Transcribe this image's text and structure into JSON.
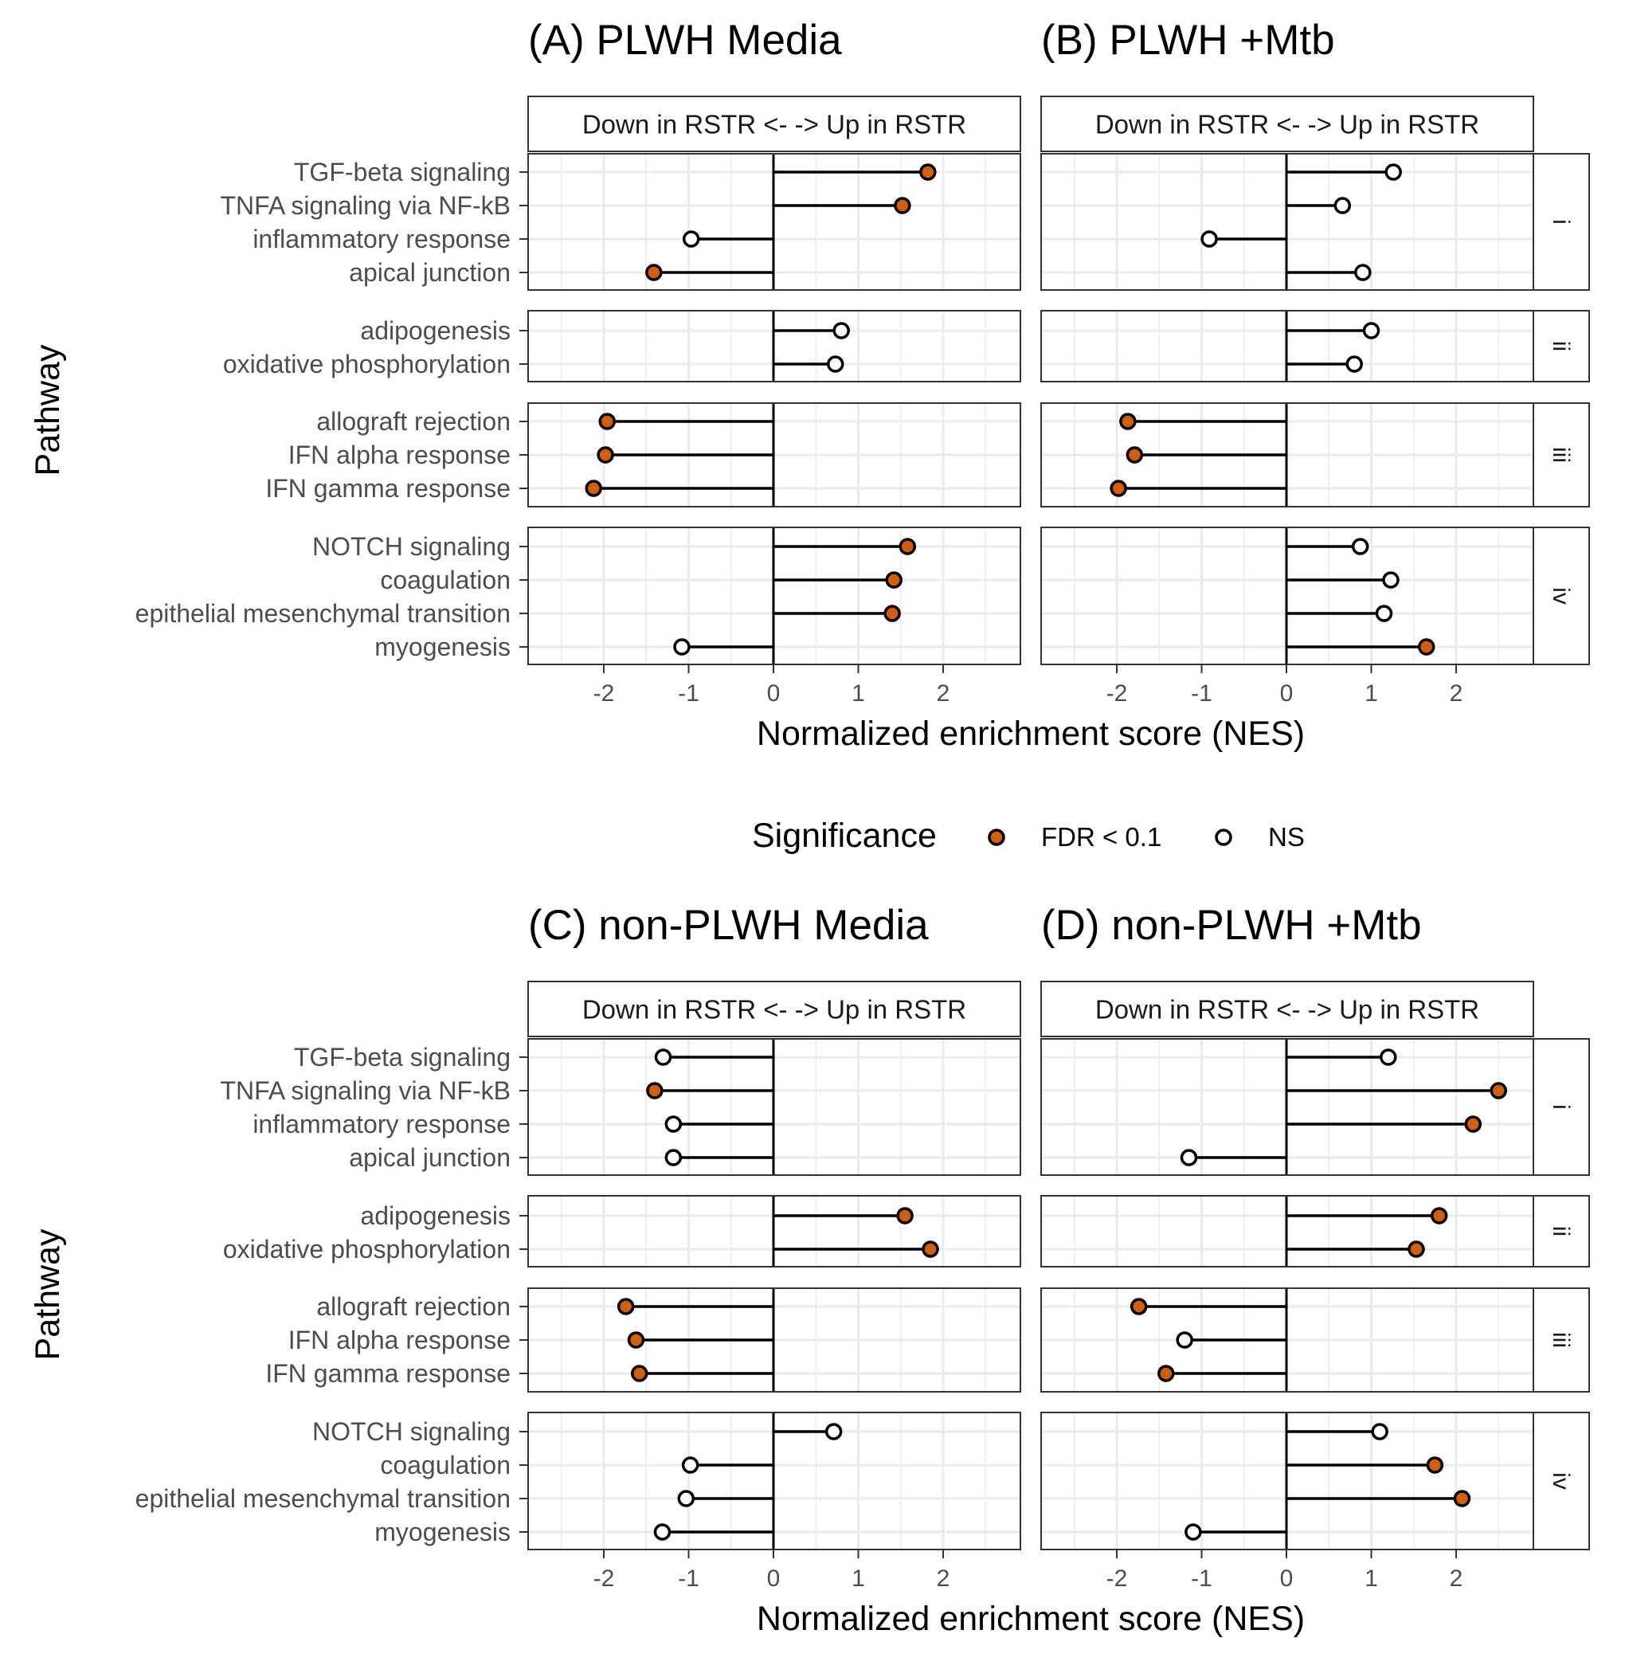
{
  "figure": {
    "y_axis_title": "Pathway",
    "x_axis_title": "Normalized enrichment score (NES)",
    "strip_label": "Down in RSTR <-  -> Up in RSTR",
    "legend": {
      "title": "Significance",
      "items": [
        {
          "label": "FDR < 0.1",
          "color": "#D55E00"
        },
        {
          "label": "NS",
          "color": "#FFFFFF"
        }
      ]
    }
  },
  "chart_data": [
    {
      "type": "lollipop",
      "title": "(A) PLWH Media",
      "xlabel": "Normalized enrichment score (NES)",
      "ylabel": "Pathway",
      "xlim": [
        -2.9,
        2.9
      ],
      "x_ticks": [
        "-2",
        "-1",
        "0",
        "1",
        "2"
      ],
      "groups": [
        {
          "label": "i",
          "rows": [
            {
              "pathway": "TGF-beta signaling",
              "nes": 1.82,
              "significant": true
            },
            {
              "pathway": "TNFA signaling via NF-kB",
              "nes": 1.52,
              "significant": true
            },
            {
              "pathway": "inflammatory response",
              "nes": -0.97,
              "significant": false
            },
            {
              "pathway": "apical junction",
              "nes": -1.41,
              "significant": true
            }
          ]
        },
        {
          "label": "ii",
          "rows": [
            {
              "pathway": "adipogenesis",
              "nes": 0.8,
              "significant": false
            },
            {
              "pathway": "oxidative phosphorylation",
              "nes": 0.73,
              "significant": false
            }
          ]
        },
        {
          "label": "iii",
          "rows": [
            {
              "pathway": "allograft rejection",
              "nes": -1.96,
              "significant": true
            },
            {
              "pathway": "IFN alpha response",
              "nes": -1.98,
              "significant": true
            },
            {
              "pathway": "IFN gamma response",
              "nes": -2.12,
              "significant": true
            }
          ]
        },
        {
          "label": "iv",
          "rows": [
            {
              "pathway": "NOTCH signaling",
              "nes": 1.58,
              "significant": true
            },
            {
              "pathway": "coagulation",
              "nes": 1.42,
              "significant": true
            },
            {
              "pathway": "epithelial mesenchymal transition",
              "nes": 1.4,
              "significant": true
            },
            {
              "pathway": "myogenesis",
              "nes": -1.08,
              "significant": false
            }
          ]
        }
      ]
    },
    {
      "type": "lollipop",
      "title": "(B) PLWH +Mtb",
      "xlabel": "Normalized enrichment score (NES)",
      "xlim": [
        -2.9,
        2.9
      ],
      "x_ticks": [
        "-2",
        "-1",
        "0",
        "1",
        "2"
      ],
      "groups": [
        {
          "label": "i",
          "rows": [
            {
              "pathway": "TGF-beta signaling",
              "nes": 1.26,
              "significant": false
            },
            {
              "pathway": "TNFA signaling via NF-kB",
              "nes": 0.66,
              "significant": false
            },
            {
              "pathway": "inflammatory response",
              "nes": -0.91,
              "significant": false
            },
            {
              "pathway": "apical junction",
              "nes": 0.9,
              "significant": false
            }
          ]
        },
        {
          "label": "ii",
          "rows": [
            {
              "pathway": "adipogenesis",
              "nes": 1.0,
              "significant": false
            },
            {
              "pathway": "oxidative phosphorylation",
              "nes": 0.8,
              "significant": false
            }
          ]
        },
        {
          "label": "iii",
          "rows": [
            {
              "pathway": "allograft rejection",
              "nes": -1.87,
              "significant": true
            },
            {
              "pathway": "IFN alpha response",
              "nes": -1.79,
              "significant": true
            },
            {
              "pathway": "IFN gamma response",
              "nes": -1.98,
              "significant": true
            }
          ]
        },
        {
          "label": "iv",
          "rows": [
            {
              "pathway": "NOTCH signaling",
              "nes": 0.87,
              "significant": false
            },
            {
              "pathway": "coagulation",
              "nes": 1.23,
              "significant": false
            },
            {
              "pathway": "epithelial mesenchymal transition",
              "nes": 1.15,
              "significant": false
            },
            {
              "pathway": "myogenesis",
              "nes": 1.65,
              "significant": true
            }
          ]
        }
      ]
    },
    {
      "type": "lollipop",
      "title": "(C) non-PLWH Media",
      "xlabel": "Normalized enrichment score (NES)",
      "ylabel": "Pathway",
      "xlim": [
        -2.9,
        2.9
      ],
      "x_ticks": [
        "-2",
        "-1",
        "0",
        "1",
        "2"
      ],
      "groups": [
        {
          "label": "i",
          "rows": [
            {
              "pathway": "TGF-beta signaling",
              "nes": -1.3,
              "significant": false
            },
            {
              "pathway": "TNFA signaling via NF-kB",
              "nes": -1.4,
              "significant": true
            },
            {
              "pathway": "inflammatory response",
              "nes": -1.18,
              "significant": false
            },
            {
              "pathway": "apical junction",
              "nes": -1.18,
              "significant": false
            }
          ]
        },
        {
          "label": "ii",
          "rows": [
            {
              "pathway": "adipogenesis",
              "nes": 1.55,
              "significant": true
            },
            {
              "pathway": "oxidative phosphorylation",
              "nes": 1.85,
              "significant": true
            }
          ]
        },
        {
          "label": "iii",
          "rows": [
            {
              "pathway": "allograft rejection",
              "nes": -1.74,
              "significant": true
            },
            {
              "pathway": "IFN alpha response",
              "nes": -1.62,
              "significant": true
            },
            {
              "pathway": "IFN gamma response",
              "nes": -1.58,
              "significant": true
            }
          ]
        },
        {
          "label": "iv",
          "rows": [
            {
              "pathway": "NOTCH signaling",
              "nes": 0.71,
              "significant": false
            },
            {
              "pathway": "coagulation",
              "nes": -0.98,
              "significant": false
            },
            {
              "pathway": "epithelial mesenchymal transition",
              "nes": -1.03,
              "significant": false
            },
            {
              "pathway": "myogenesis",
              "nes": -1.31,
              "significant": false
            }
          ]
        }
      ]
    },
    {
      "type": "lollipop",
      "title": "(D) non-PLWH +Mtb",
      "xlabel": "Normalized enrichment score (NES)",
      "xlim": [
        -2.9,
        2.9
      ],
      "x_ticks": [
        "-2",
        "-1",
        "0",
        "1",
        "2"
      ],
      "groups": [
        {
          "label": "i",
          "rows": [
            {
              "pathway": "TGF-beta signaling",
              "nes": 1.2,
              "significant": false
            },
            {
              "pathway": "TNFA signaling via NF-kB",
              "nes": 2.5,
              "significant": true
            },
            {
              "pathway": "inflammatory response",
              "nes": 2.2,
              "significant": true
            },
            {
              "pathway": "apical junction",
              "nes": -1.15,
              "significant": false
            }
          ]
        },
        {
          "label": "ii",
          "rows": [
            {
              "pathway": "adipogenesis",
              "nes": 1.8,
              "significant": true
            },
            {
              "pathway": "oxidative phosphorylation",
              "nes": 1.53,
              "significant": true
            }
          ]
        },
        {
          "label": "iii",
          "rows": [
            {
              "pathway": "allograft rejection",
              "nes": -1.74,
              "significant": true
            },
            {
              "pathway": "IFN alpha response",
              "nes": -1.2,
              "significant": false
            },
            {
              "pathway": "IFN gamma response",
              "nes": -1.42,
              "significant": true
            }
          ]
        },
        {
          "label": "iv",
          "rows": [
            {
              "pathway": "NOTCH signaling",
              "nes": 1.1,
              "significant": false
            },
            {
              "pathway": "coagulation",
              "nes": 1.75,
              "significant": true
            },
            {
              "pathway": "epithelial mesenchymal transition",
              "nes": 2.07,
              "significant": true
            },
            {
              "pathway": "myogenesis",
              "nes": -1.1,
              "significant": false
            }
          ]
        }
      ]
    }
  ]
}
